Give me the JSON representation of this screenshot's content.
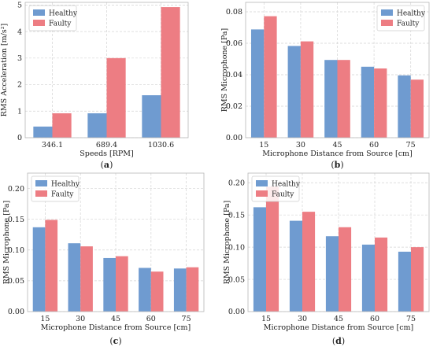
{
  "colors": {
    "healthy": "#6f9bd0",
    "faulty": "#ed7d83"
  },
  "chart_data": [
    {
      "type": "bar",
      "label": "(a)",
      "categories": [
        "346.1",
        "689.4",
        "1030.6"
      ],
      "series": [
        {
          "name": "Healthy",
          "values": [
            0.42,
            0.92,
            1.6
          ]
        },
        {
          "name": "Faulty",
          "values": [
            0.92,
            3.0,
            4.92
          ]
        }
      ],
      "ylim": [
        0,
        5.1
      ],
      "yticks": [
        "0",
        "1",
        "2",
        "3",
        "4",
        "5"
      ],
      "xlabel": "Speeds [RPM]",
      "ylabel": "RMS Acceleration [m/s²]",
      "legend": "top-left",
      "grid": true
    },
    {
      "type": "bar",
      "label": "(b)",
      "categories": [
        "15",
        "30",
        "45",
        "60",
        "75"
      ],
      "series": [
        {
          "name": "Healthy",
          "values": [
            0.0688,
            0.0583,
            0.0494,
            0.0451,
            0.0396
          ]
        },
        {
          "name": "Faulty",
          "values": [
            0.0772,
            0.0612,
            0.0494,
            0.044,
            0.0369
          ]
        }
      ],
      "ylim": [
        0,
        0.086
      ],
      "yticks": [
        "0.00",
        "0.02",
        "0.04",
        "0.06",
        "0.08"
      ],
      "xlabel": "Microphone Distance from Source [cm]",
      "ylabel": "RMS Microphone [Pa]",
      "legend": "top-right",
      "grid": true
    },
    {
      "type": "bar",
      "label": "(c)",
      "categories": [
        "15",
        "30",
        "45",
        "60",
        "75"
      ],
      "series": [
        {
          "name": "Healthy",
          "values": [
            0.137,
            0.111,
            0.087,
            0.071,
            0.07
          ]
        },
        {
          "name": "Faulty",
          "values": [
            0.149,
            0.106,
            0.09,
            0.065,
            0.072
          ]
        }
      ],
      "ylim": [
        0,
        0.225
      ],
      "yticks": [
        "0.00",
        "0.05",
        "0.10",
        "0.15",
        "0.20"
      ],
      "xlabel": "Microphone Distance from Source [cm]",
      "ylabel": "RMS Microphone [Pa]",
      "legend": "top-left",
      "grid": true
    },
    {
      "type": "bar",
      "label": "(d)",
      "categories": [
        "15",
        "30",
        "45",
        "60",
        "75"
      ],
      "series": [
        {
          "name": "Healthy",
          "values": [
            0.162,
            0.141,
            0.117,
            0.104,
            0.093
          ]
        },
        {
          "name": "Faulty",
          "values": [
            0.194,
            0.155,
            0.131,
            0.115,
            0.1
          ]
        }
      ],
      "ylim": [
        0,
        0.215
      ],
      "yticks": [
        "0.00",
        "0.05",
        "0.10",
        "0.15",
        "0.20"
      ],
      "xlabel": "Microphone Distance from Source [cm]",
      "ylabel": "RMS Microphone [Pa]",
      "legend": "top-left",
      "grid": true
    }
  ]
}
